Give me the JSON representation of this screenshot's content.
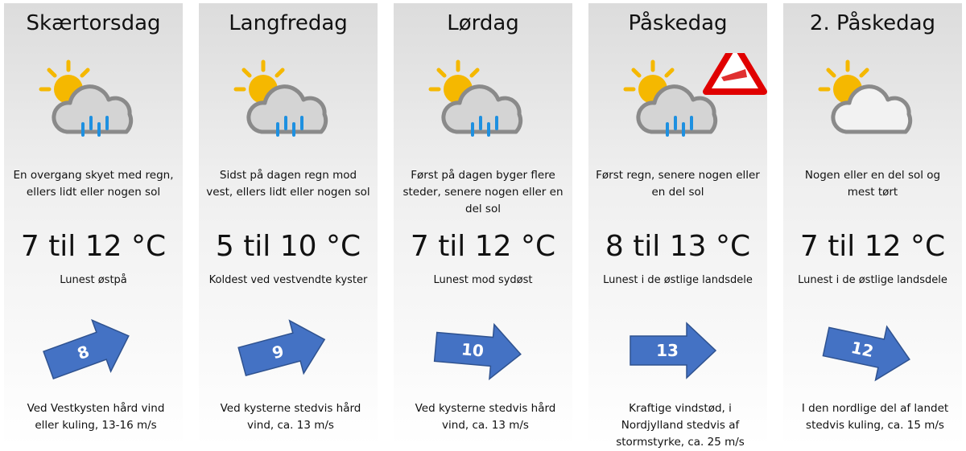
{
  "days": [
    {
      "name": "Skærtorsdag",
      "description": "En overgang skyet med regn, ellers lidt eller nogen sol",
      "temperature": "7 til 12 °C",
      "temperature_note": "Lunest østpå",
      "wind_speed": "8",
      "wind_note": "Ved Vestkysten hård vind eller kuling, 13-16 m/s"
    },
    {
      "name": "Langfredag",
      "description": "Sidst på dagen regn mod vest, ellers lidt eller nogen sol",
      "temperature": "5 til 10 °C",
      "temperature_note": "Koldest ved vestvendte kyster",
      "wind_speed": "9",
      "wind_note": "Ved kysterne stedvis hård vind, ca. 13 m/s"
    },
    {
      "name": "Lørdag",
      "description": "Først på dagen byger flere steder, senere nogen eller en del sol",
      "temperature": "7 til 12 °C",
      "temperature_note": "Lunest mod sydøst",
      "wind_speed": "10",
      "wind_note": "Ved kysterne stedvis hård vind, ca. 13 m/s"
    },
    {
      "name": "Påskedag",
      "description": "Først regn, senere nogen eller en del sol",
      "temperature": "8 til 13 °C",
      "temperature_note": "Lunest i de østlige landsdele",
      "wind_speed": "13",
      "wind_note": "Kraftige vindstød, i Nordjylland stedvis af stormstyrke, ca. 25 m/s"
    },
    {
      "name": "2. Påskedag",
      "description": "Nogen eller en del sol og mest tørt",
      "temperature": "7 til 12 °C",
      "temperature_note": "Lunest i de østlige landsdele",
      "wind_speed": "12",
      "wind_note": "I den nordlige del af landet stedvis kuling, ca. 15 m/s"
    }
  ]
}
